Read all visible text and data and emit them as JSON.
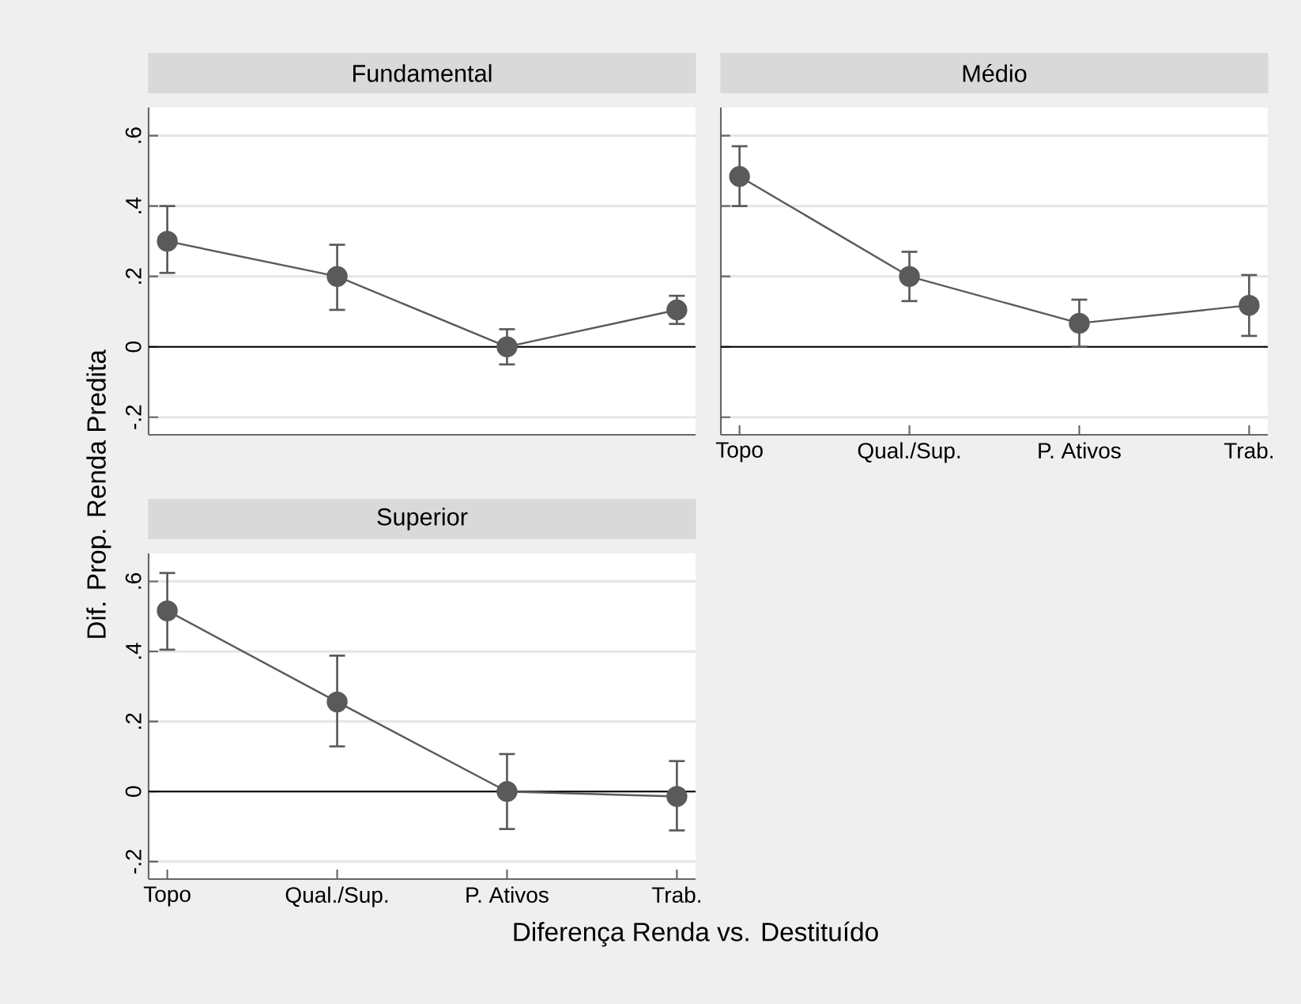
{
  "chart_data": [
    {
      "type": "line",
      "title": "Fundamental",
      "categories": [
        null,
        null,
        null,
        null
      ],
      "series": [
        {
          "color": "#5a5a5a",
          "values": [
            0.3,
            0.2,
            0.0,
            0.105
          ],
          "errors": [
            [
              0.21,
              0.4
            ],
            [
              0.105,
              0.29
            ],
            [
              -0.05,
              0.05
            ],
            [
              0.065,
              0.145
            ]
          ]
        }
      ],
      "marker": "circle",
      "ylim": [
        -0.25,
        0.68
      ],
      "yticks": [
        {
          "value": -0.2,
          "label": "-.2"
        },
        0,
        {
          "value": 0.2,
          "label": ".2"
        },
        {
          "value": 0.4,
          "label": ".4"
        },
        {
          "value": 0.6,
          "label": ".6"
        }
      ],
      "grid": "y",
      "ref_lines": [
        {
          "axis": "y",
          "value": 0,
          "color": "#000000"
        }
      ],
      "tick_labels": "y"
    },
    {
      "type": "line",
      "title": "Médio",
      "categories": [
        "Topo",
        "Qual./Sup.",
        "P. Ativos",
        "Trab."
      ],
      "series": [
        {
          "color": "#5a5a5a",
          "values": [
            0.484,
            0.2,
            0.067,
            0.118
          ],
          "errors": [
            [
              0.4,
              0.57
            ],
            [
              0.13,
              0.27
            ],
            [
              0.0,
              0.134
            ],
            [
              0.031,
              0.204
            ]
          ]
        }
      ],
      "marker": "circle",
      "ylim": [
        -0.25,
        0.68
      ],
      "yticks": [
        {
          "value": -0.2,
          "label": null
        },
        {
          "value": 0,
          "label": null
        },
        {
          "value": 0.2,
          "label": null
        },
        {
          "value": 0.4,
          "label": null
        },
        {
          "value": 0.6,
          "label": null
        }
      ],
      "grid": "y",
      "ref_lines": [
        {
          "axis": "y",
          "value": 0,
          "color": "#000000"
        }
      ],
      "tick_labels": "x"
    },
    {
      "type": "line",
      "title": "Superior",
      "categories": [
        "Topo",
        "Qual./Sup.",
        "P. Ativos",
        "Trab."
      ],
      "xlabel": "Diferença Renda vs. Destituído",
      "ylabel": "Dif. Prop. Renda Predita",
      "series": [
        {
          "color": "#5a5a5a",
          "values": [
            0.516,
            0.256,
            0.0,
            -0.014
          ],
          "errors": [
            [
              0.405,
              0.624
            ],
            [
              0.129,
              0.388
            ],
            [
              -0.107,
              0.107
            ],
            [
              -0.111,
              0.087
            ]
          ]
        }
      ],
      "marker": "circle",
      "ylim": [
        -0.25,
        0.68
      ],
      "yticks": [
        {
          "value": -0.2,
          "label": "-.2"
        },
        0,
        {
          "value": 0.2,
          "label": ".2"
        },
        {
          "value": 0.4,
          "label": ".4"
        },
        {
          "value": 0.6,
          "label": ".6"
        }
      ],
      "grid": "y",
      "ref_lines": [
        {
          "axis": "y",
          "value": 0,
          "color": "#000000"
        }
      ]
    }
  ]
}
